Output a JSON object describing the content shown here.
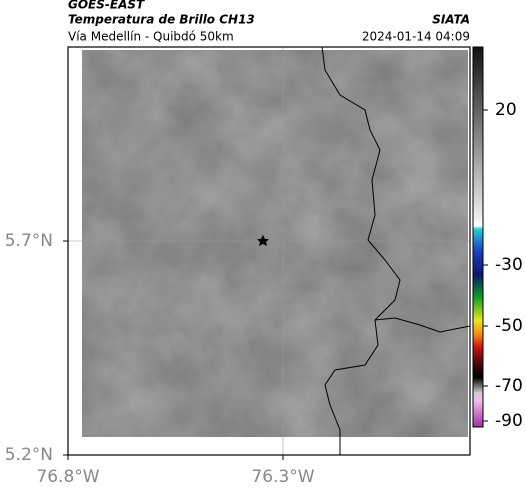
{
  "header": {
    "satellite": "GOES-EAST",
    "product": "Temperatura de Brillo CH13",
    "source": "SIATA",
    "region": "Vía Medellín - Quibdó 50km",
    "timestamp": "2024-01-14 04:09"
  },
  "axes": {
    "x_labels": [
      "76.8°W",
      "76.3°W"
    ],
    "y_labels": [
      "5.7°N",
      "5.2°N"
    ]
  },
  "colorbar": {
    "labels": [
      "20",
      "-30",
      "-50",
      "-70",
      "-90"
    ]
  }
}
